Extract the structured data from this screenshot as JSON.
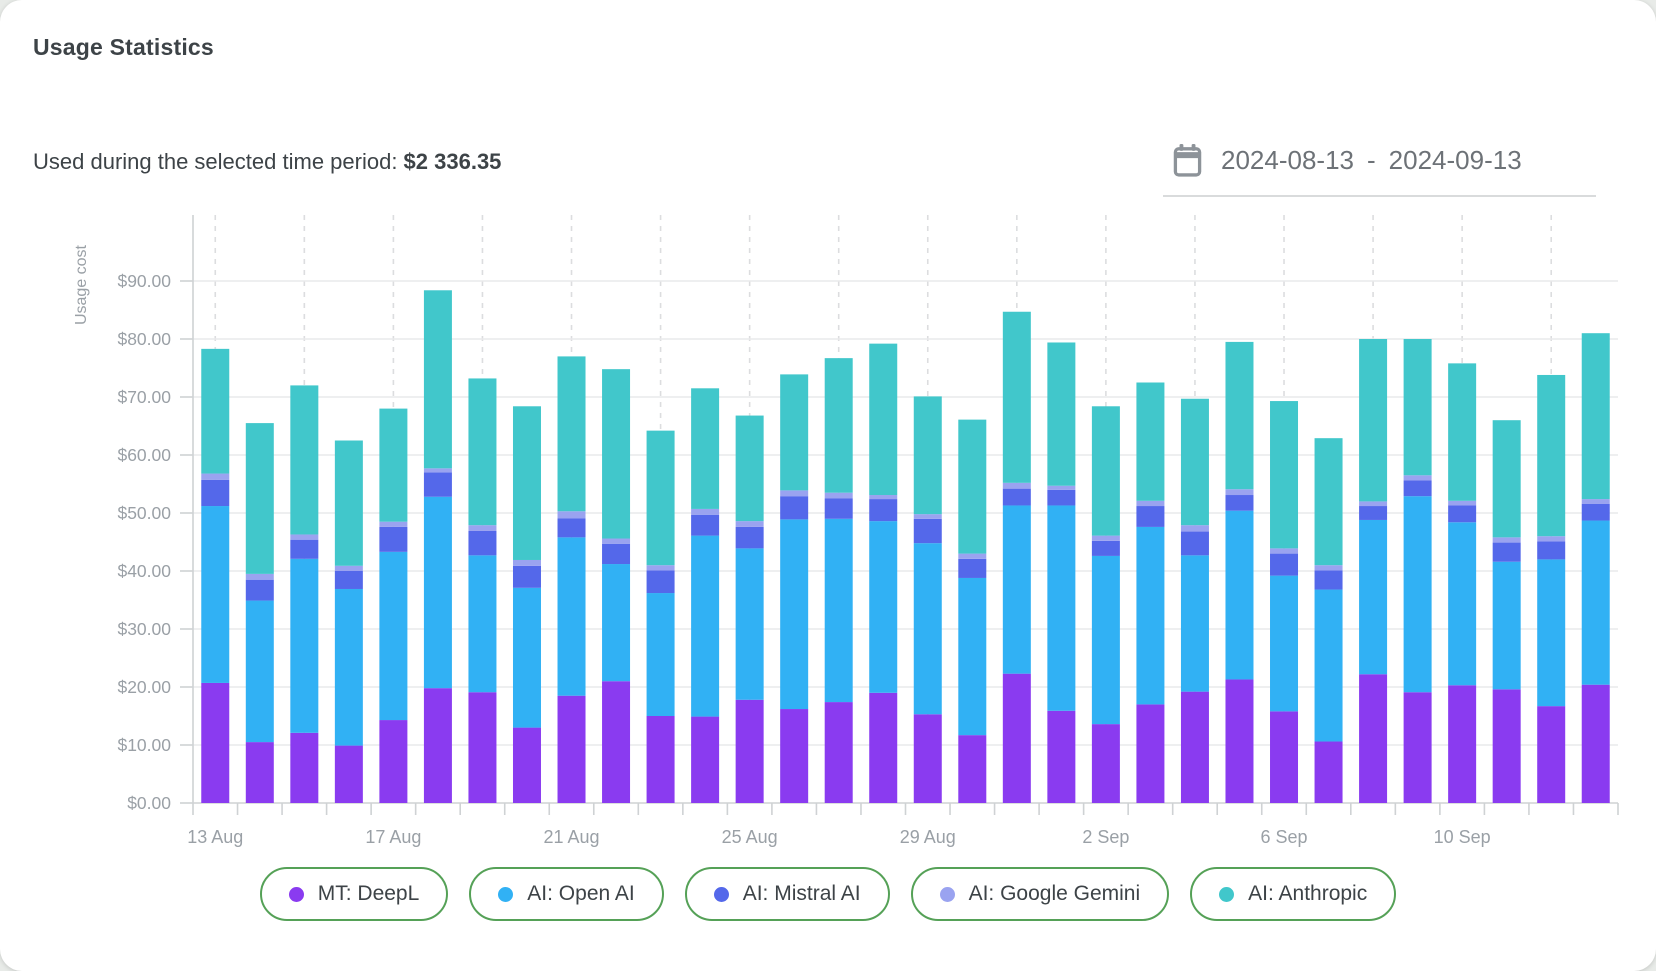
{
  "header": {
    "title": "Usage Statistics",
    "period_label": "Used during the selected time period: ",
    "period_total": "$2 336.35"
  },
  "date_range": {
    "start": "2024-08-13",
    "separator": "-",
    "end": "2024-09-13",
    "calendar_icon": "calendar-icon",
    "icon_color": "#8d9399"
  },
  "legend": {
    "border_color": "#55a157",
    "items": [
      {
        "id": "deepl",
        "label": "MT: DeepL",
        "color": "#8a3bf0"
      },
      {
        "id": "openai",
        "label": "AI: Open AI",
        "color": "#31b1f4"
      },
      {
        "id": "mistral",
        "label": "AI: Mistral AI",
        "color": "#5468ea"
      },
      {
        "id": "gemini",
        "label": "AI: Google Gemini",
        "color": "#9aa3f0"
      },
      {
        "id": "anthropic",
        "label": "AI: Anthropic",
        "color": "#41c7cb"
      }
    ]
  },
  "chart_data": {
    "type": "bar",
    "stacked": true,
    "title": "",
    "xlabel": "",
    "ylabel": "Usage cost",
    "ylim": [
      0,
      100
    ],
    "grid": {
      "horizontal": "solid",
      "vertical": "dashed-every-2-days"
    },
    "legend_position": "bottom",
    "x": [
      "13 Aug",
      "14 Aug",
      "15 Aug",
      "16 Aug",
      "17 Aug",
      "18 Aug",
      "19 Aug",
      "20 Aug",
      "21 Aug",
      "22 Aug",
      "23 Aug",
      "24 Aug",
      "25 Aug",
      "26 Aug",
      "27 Aug",
      "28 Aug",
      "29 Aug",
      "30 Aug",
      "31 Aug",
      "1 Sep",
      "2 Sep",
      "3 Sep",
      "4 Sep",
      "5 Sep",
      "6 Sep",
      "7 Sep",
      "8 Sep",
      "9 Sep",
      "10 Sep",
      "11 Sep",
      "12 Sep",
      "13 Sep"
    ],
    "x_tick_labels": [
      {
        "index": 0,
        "label": "13 Aug"
      },
      {
        "index": 4,
        "label": "17 Aug"
      },
      {
        "index": 8,
        "label": "21 Aug"
      },
      {
        "index": 12,
        "label": "25 Aug"
      },
      {
        "index": 16,
        "label": "29 Aug"
      },
      {
        "index": 20,
        "label": "2 Sep"
      },
      {
        "index": 24,
        "label": "6 Sep"
      },
      {
        "index": 28,
        "label": "10 Sep"
      }
    ],
    "y_ticks": [
      {
        "value": 0,
        "label": "$0.00"
      },
      {
        "value": 10,
        "label": "$10.00"
      },
      {
        "value": 20,
        "label": "$20.00"
      },
      {
        "value": 30,
        "label": "$30.00"
      },
      {
        "value": 40,
        "label": "$40.00"
      },
      {
        "value": 50,
        "label": "$50.00"
      },
      {
        "value": 60,
        "label": "$60.00"
      },
      {
        "value": 70,
        "label": "$70.00"
      },
      {
        "value": 80,
        "label": "$80.00"
      },
      {
        "value": 90,
        "label": "$90.00"
      }
    ],
    "series": [
      {
        "name": "MT: DeepL",
        "color": "#8a3bf0",
        "values": [
          20.7,
          10.5,
          12.1,
          9.9,
          14.3,
          19.8,
          19.1,
          13.0,
          18.5,
          21.0,
          15.0,
          14.9,
          17.8,
          16.2,
          17.4,
          19.0,
          15.3,
          11.7,
          22.3,
          15.9,
          13.6,
          17.0,
          19.2,
          21.3,
          15.8,
          10.6,
          22.2,
          19.1,
          20.3,
          19.6,
          16.7,
          20.4
        ]
      },
      {
        "name": "AI: Open AI",
        "color": "#31b1f4",
        "values": [
          30.5,
          24.4,
          30.0,
          27.0,
          29.0,
          33.0,
          23.6,
          24.1,
          27.3,
          20.2,
          21.2,
          31.2,
          26.1,
          32.7,
          31.6,
          29.6,
          29.5,
          27.1,
          29.0,
          35.4,
          29.0,
          30.6,
          23.5,
          29.1,
          23.4,
          26.2,
          26.6,
          33.8,
          28.1,
          22.0,
          25.3,
          28.3
        ]
      },
      {
        "name": "AI: Mistral AI",
        "color": "#5468ea",
        "values": [
          4.5,
          3.6,
          3.3,
          3.1,
          4.3,
          4.2,
          4.2,
          3.8,
          3.3,
          3.5,
          3.9,
          3.6,
          3.7,
          4.0,
          3.5,
          3.8,
          4.2,
          3.3,
          2.9,
          2.7,
          2.6,
          3.6,
          4.1,
          2.7,
          3.8,
          3.3,
          2.4,
          2.7,
          2.9,
          3.3,
          3.1,
          2.9
        ]
      },
      {
        "name": "AI: Google Gemini",
        "color": "#9aa3f0",
        "values": [
          1.1,
          1.0,
          0.9,
          0.9,
          0.9,
          0.7,
          1.0,
          1.0,
          1.2,
          0.9,
          0.9,
          1.0,
          1.0,
          1.0,
          1.0,
          0.7,
          0.8,
          0.9,
          1.0,
          0.7,
          0.9,
          0.9,
          1.1,
          1.0,
          0.9,
          0.9,
          0.8,
          0.9,
          0.8,
          0.9,
          0.9,
          0.8
        ]
      },
      {
        "name": "AI: Anthropic",
        "color": "#41c7cb",
        "values": [
          21.5,
          26.0,
          25.7,
          21.6,
          19.5,
          30.7,
          25.3,
          26.5,
          26.7,
          29.2,
          23.2,
          20.8,
          18.2,
          20.0,
          23.2,
          26.1,
          20.3,
          23.1,
          29.5,
          24.7,
          22.3,
          20.4,
          21.8,
          25.4,
          25.4,
          21.9,
          28.0,
          23.5,
          23.7,
          20.2,
          27.8,
          28.6
        ]
      }
    ],
    "style": {
      "tick_color": "#9aa0a6",
      "hgrid": "#e9eaeb",
      "vgrid": "#dcdddf",
      "axis": "#cfd2d4"
    }
  }
}
